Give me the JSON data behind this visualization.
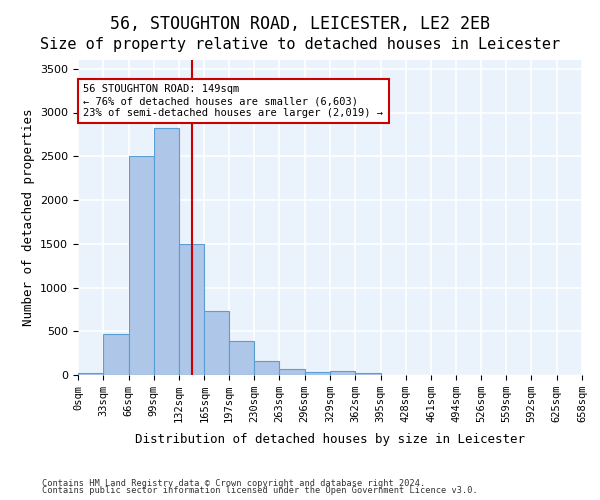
{
  "title_line1": "56, STOUGHTON ROAD, LEICESTER, LE2 2EB",
  "title_line2": "Size of property relative to detached houses in Leicester",
  "xlabel": "Distribution of detached houses by size in Leicester",
  "ylabel": "Number of detached properties",
  "bar_values": [
    20,
    470,
    2500,
    2820,
    1500,
    730,
    385,
    155,
    70,
    40,
    50,
    25,
    0,
    0,
    0,
    0,
    0,
    0,
    0,
    0
  ],
  "bin_edges": [
    0,
    33,
    66,
    99,
    132,
    165,
    197,
    230,
    263,
    296,
    329,
    362,
    395,
    428,
    461,
    494,
    526,
    559,
    592,
    625,
    658
  ],
  "tick_labels": [
    "0sqm",
    "33sqm",
    "66sqm",
    "99sqm",
    "132sqm",
    "165sqm",
    "197sqm",
    "230sqm",
    "263sqm",
    "296sqm",
    "329sqm",
    "362sqm",
    "395sqm",
    "428sqm",
    "461sqm",
    "494sqm",
    "526sqm",
    "559sqm",
    "592sqm",
    "625sqm",
    "658sqm"
  ],
  "bar_color": "#aec6e8",
  "bar_edgecolor": "#5a9fd4",
  "vline_x": 149,
  "vline_color": "#cc0000",
  "ylim": [
    0,
    3600
  ],
  "yticks": [
    0,
    500,
    1000,
    1500,
    2000,
    2500,
    3000,
    3500
  ],
  "annotation_text": "56 STOUGHTON ROAD: 149sqm\n← 76% of detached houses are smaller (6,603)\n23% of semi-detached houses are larger (2,019) →",
  "annotation_box_color": "#ffffff",
  "annotation_box_edgecolor": "#cc0000",
  "footnote1": "Contains HM Land Registry data © Crown copyright and database right 2024.",
  "footnote2": "Contains public sector information licensed under the Open Government Licence v3.0.",
  "fig_bg_color": "#ffffff",
  "plot_bg_color": "#eaf2fb",
  "grid_color": "#ffffff",
  "title_fontsize": 12,
  "subtitle_fontsize": 11,
  "tick_fontsize": 7.5,
  "ylabel_fontsize": 9,
  "xlabel_fontsize": 9
}
